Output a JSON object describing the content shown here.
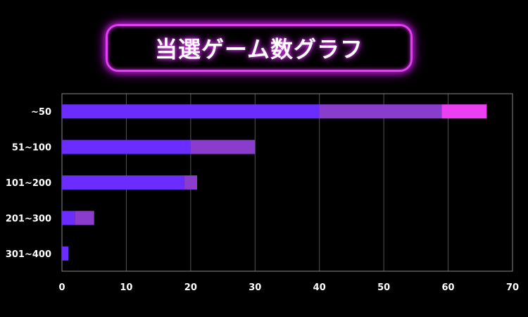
{
  "title": "当選ゲーム数グラフ",
  "colors": {
    "background": "#000000",
    "title_border": "#e040f0",
    "series": [
      "#6a2cff",
      "#8a3ccc",
      "#ea40f2"
    ],
    "grid": "#555555",
    "axis": "#888888"
  },
  "chart_data": {
    "type": "bar",
    "orientation": "horizontal",
    "stacked": true,
    "categories": [
      "~50",
      "51~100",
      "101~200",
      "201~300",
      "301~400"
    ],
    "series": [
      {
        "values": [
          40,
          20,
          19,
          2,
          1
        ]
      },
      {
        "values": [
          19,
          10,
          2,
          3,
          0
        ]
      },
      {
        "values": [
          7,
          0,
          0,
          0,
          0
        ]
      }
    ],
    "xlim": [
      0,
      70
    ],
    "xticks": [
      0,
      10,
      20,
      30,
      40,
      50,
      60,
      70
    ],
    "grid": true,
    "legend": "none"
  }
}
